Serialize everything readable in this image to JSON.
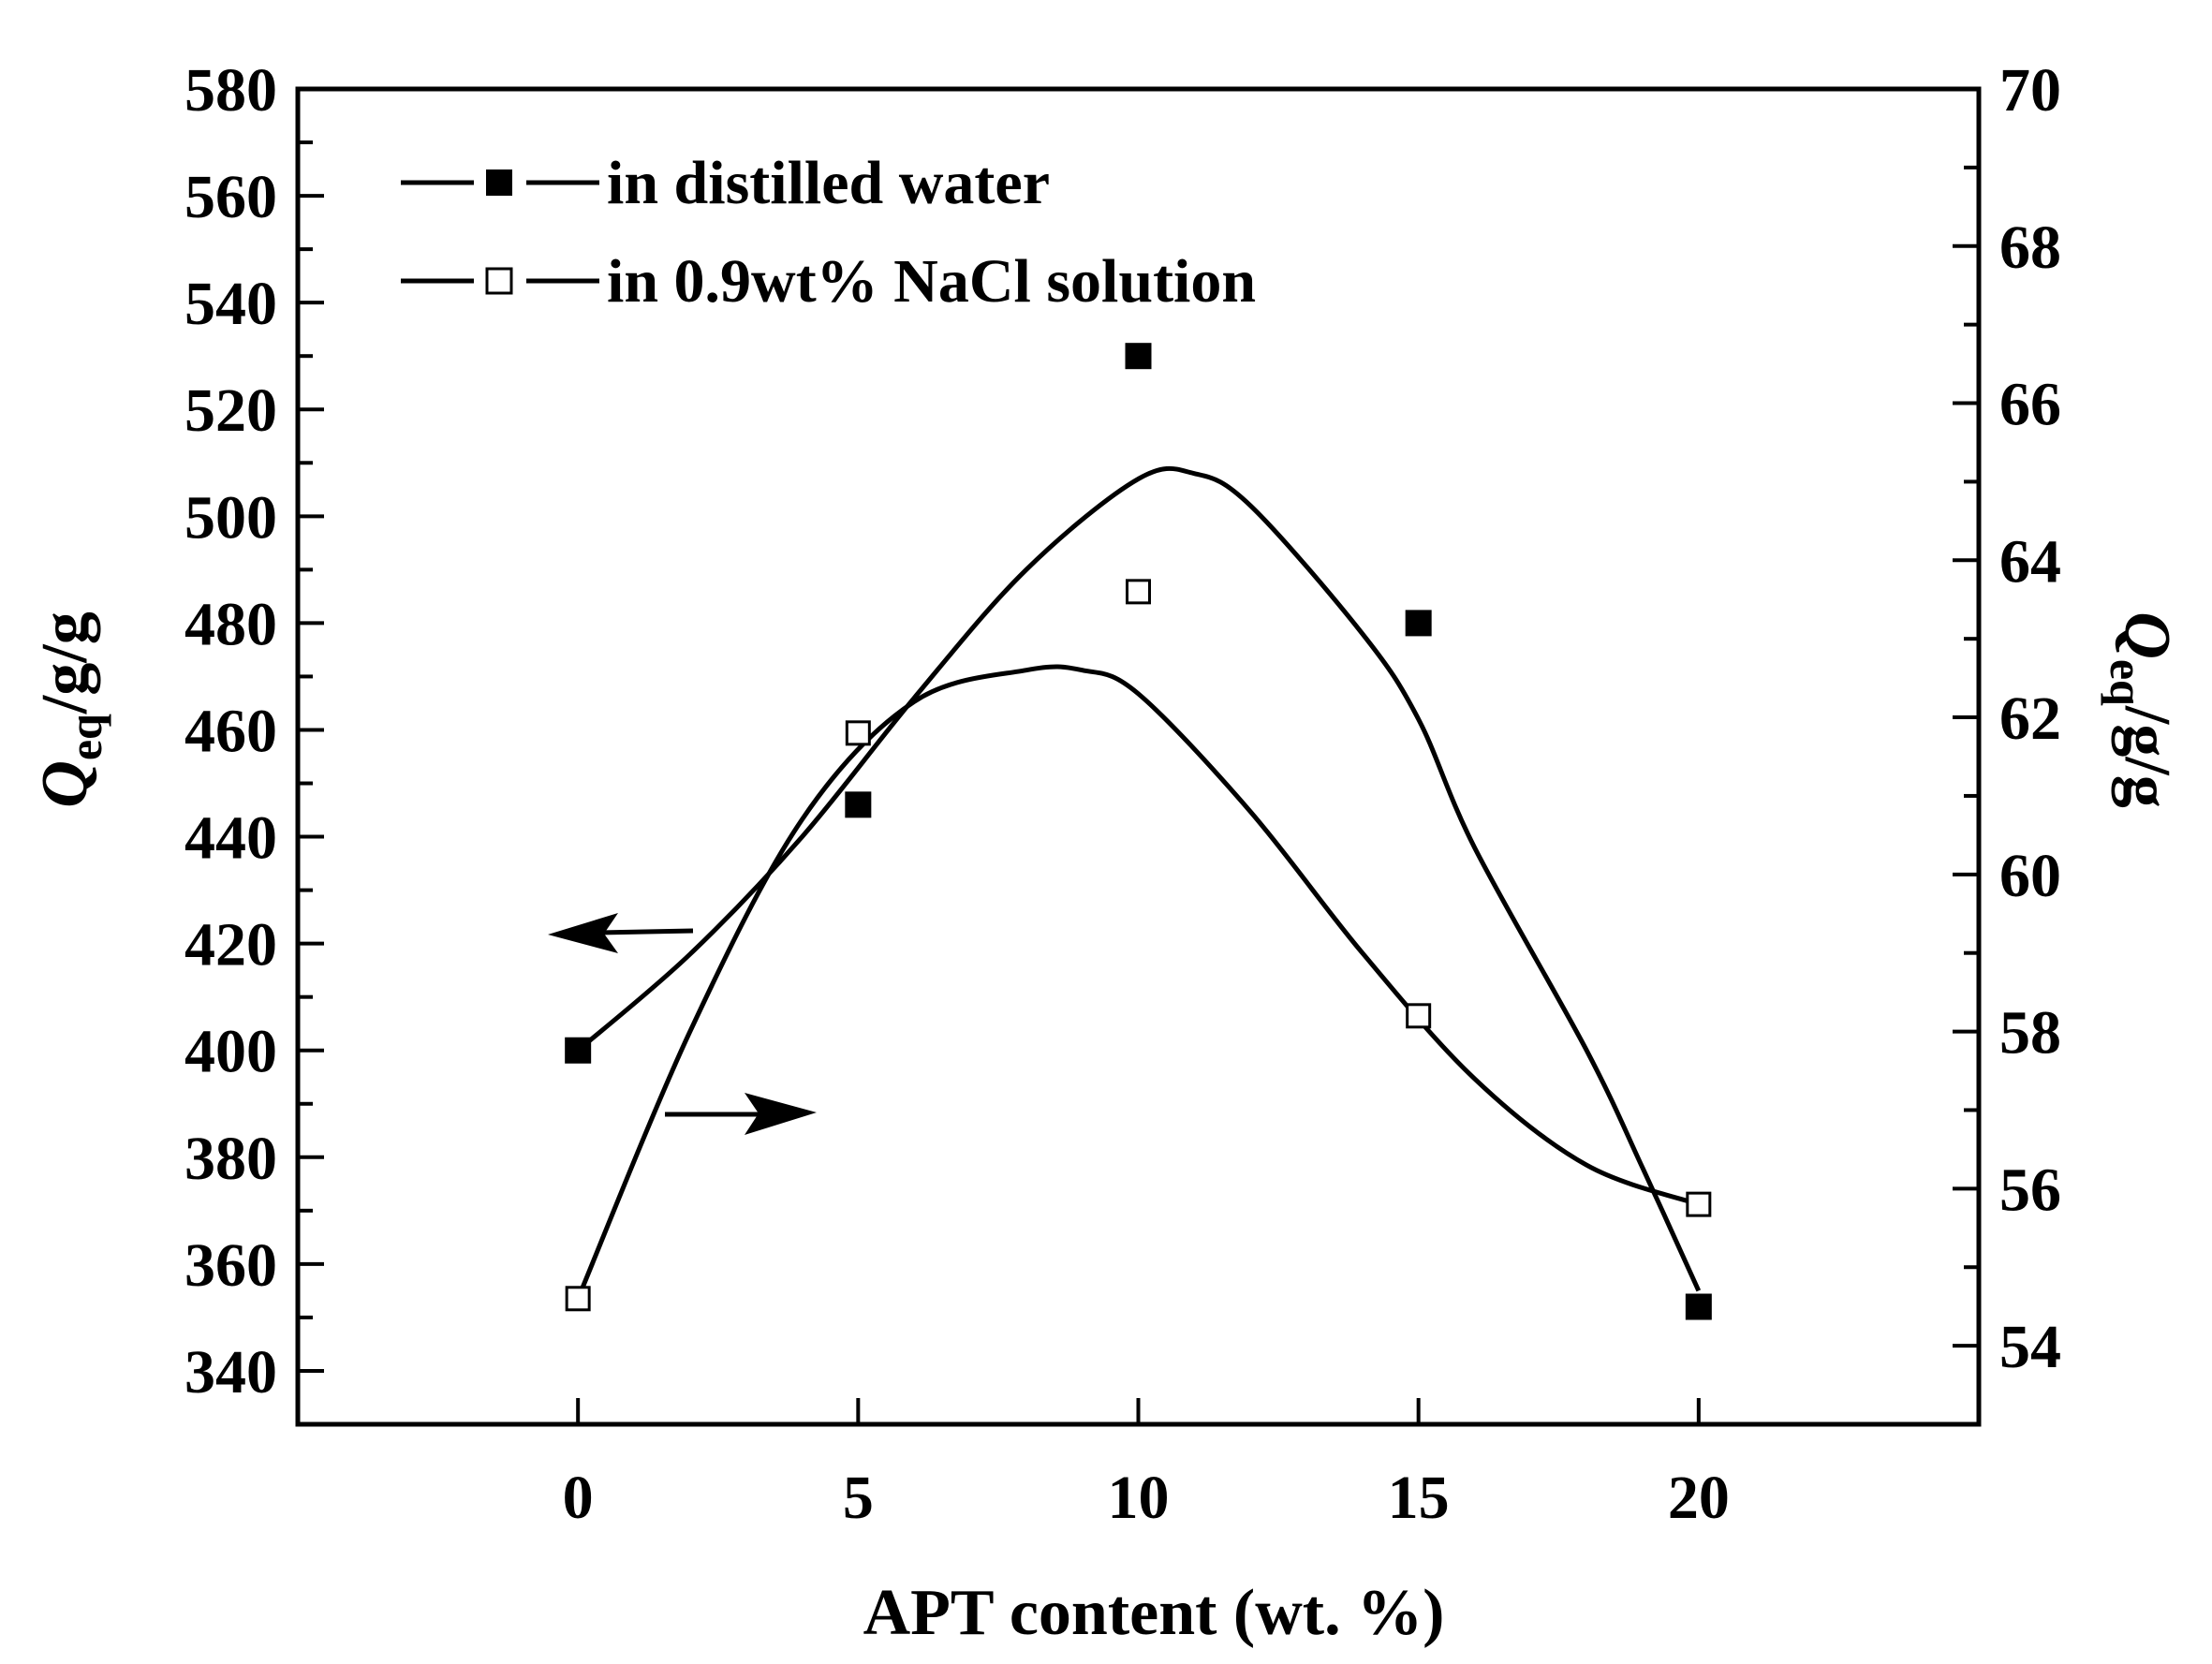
{
  "chart_data": {
    "type": "scatter",
    "title": "",
    "xlabel": "APT content (wt. %)",
    "ylabel_left": {
      "main": "Q",
      "sub": "eq",
      "rest": "/g/g"
    },
    "ylabel_right": {
      "main": "Q",
      "sub": "eq",
      "rest": "/g/g"
    },
    "xlim": [
      -5,
      25
    ],
    "ylim_left": [
      330,
      580
    ],
    "ylim_right": [
      53,
      70
    ],
    "x_ticks": [
      0,
      5,
      10,
      15,
      20
    ],
    "y_ticks_left": [
      340,
      360,
      380,
      400,
      420,
      440,
      460,
      480,
      500,
      520,
      540,
      560,
      580
    ],
    "y_ticks_right": [
      54,
      56,
      58,
      60,
      62,
      64,
      66,
      68,
      70
    ],
    "legend_position": "top-left",
    "grid": false,
    "series": [
      {
        "name": "in distilled water",
        "axis": "left",
        "marker": "filled-square",
        "x": [
          0,
          5,
          10,
          15,
          20
        ],
        "y": [
          400,
          446,
          530,
          480,
          352
        ],
        "fit_curve": [
          [
            0,
            400
          ],
          [
            2,
            418
          ],
          [
            4,
            440
          ],
          [
            6,
            466
          ],
          [
            8,
            490
          ],
          [
            10,
            507
          ],
          [
            11,
            508
          ],
          [
            12,
            502
          ],
          [
            14,
            478
          ],
          [
            15,
            462
          ],
          [
            16,
            438
          ],
          [
            18,
            400
          ],
          [
            19,
            378
          ],
          [
            20,
            355
          ]
        ]
      },
      {
        "name": "in 0.9wt% NaCl solution",
        "axis": "right",
        "marker": "open-square",
        "x": [
          0,
          5,
          10,
          15,
          20
        ],
        "y": [
          54.6,
          61.8,
          63.6,
          58.2,
          55.8
        ],
        "fit_curve": [
          [
            0,
            54.6
          ],
          [
            2,
            58.0
          ],
          [
            4,
            60.7
          ],
          [
            6,
            62.2
          ],
          [
            8,
            62.6
          ],
          [
            9,
            62.6
          ],
          [
            10,
            62.3
          ],
          [
            12,
            60.8
          ],
          [
            14,
            59.0
          ],
          [
            16,
            57.4
          ],
          [
            18,
            56.3
          ],
          [
            20,
            55.8
          ]
        ]
      }
    ],
    "annotations": [
      {
        "type": "arrow",
        "direction": "left",
        "points_to": "left-axis"
      },
      {
        "type": "arrow",
        "direction": "right",
        "points_to": "right-axis"
      }
    ]
  }
}
